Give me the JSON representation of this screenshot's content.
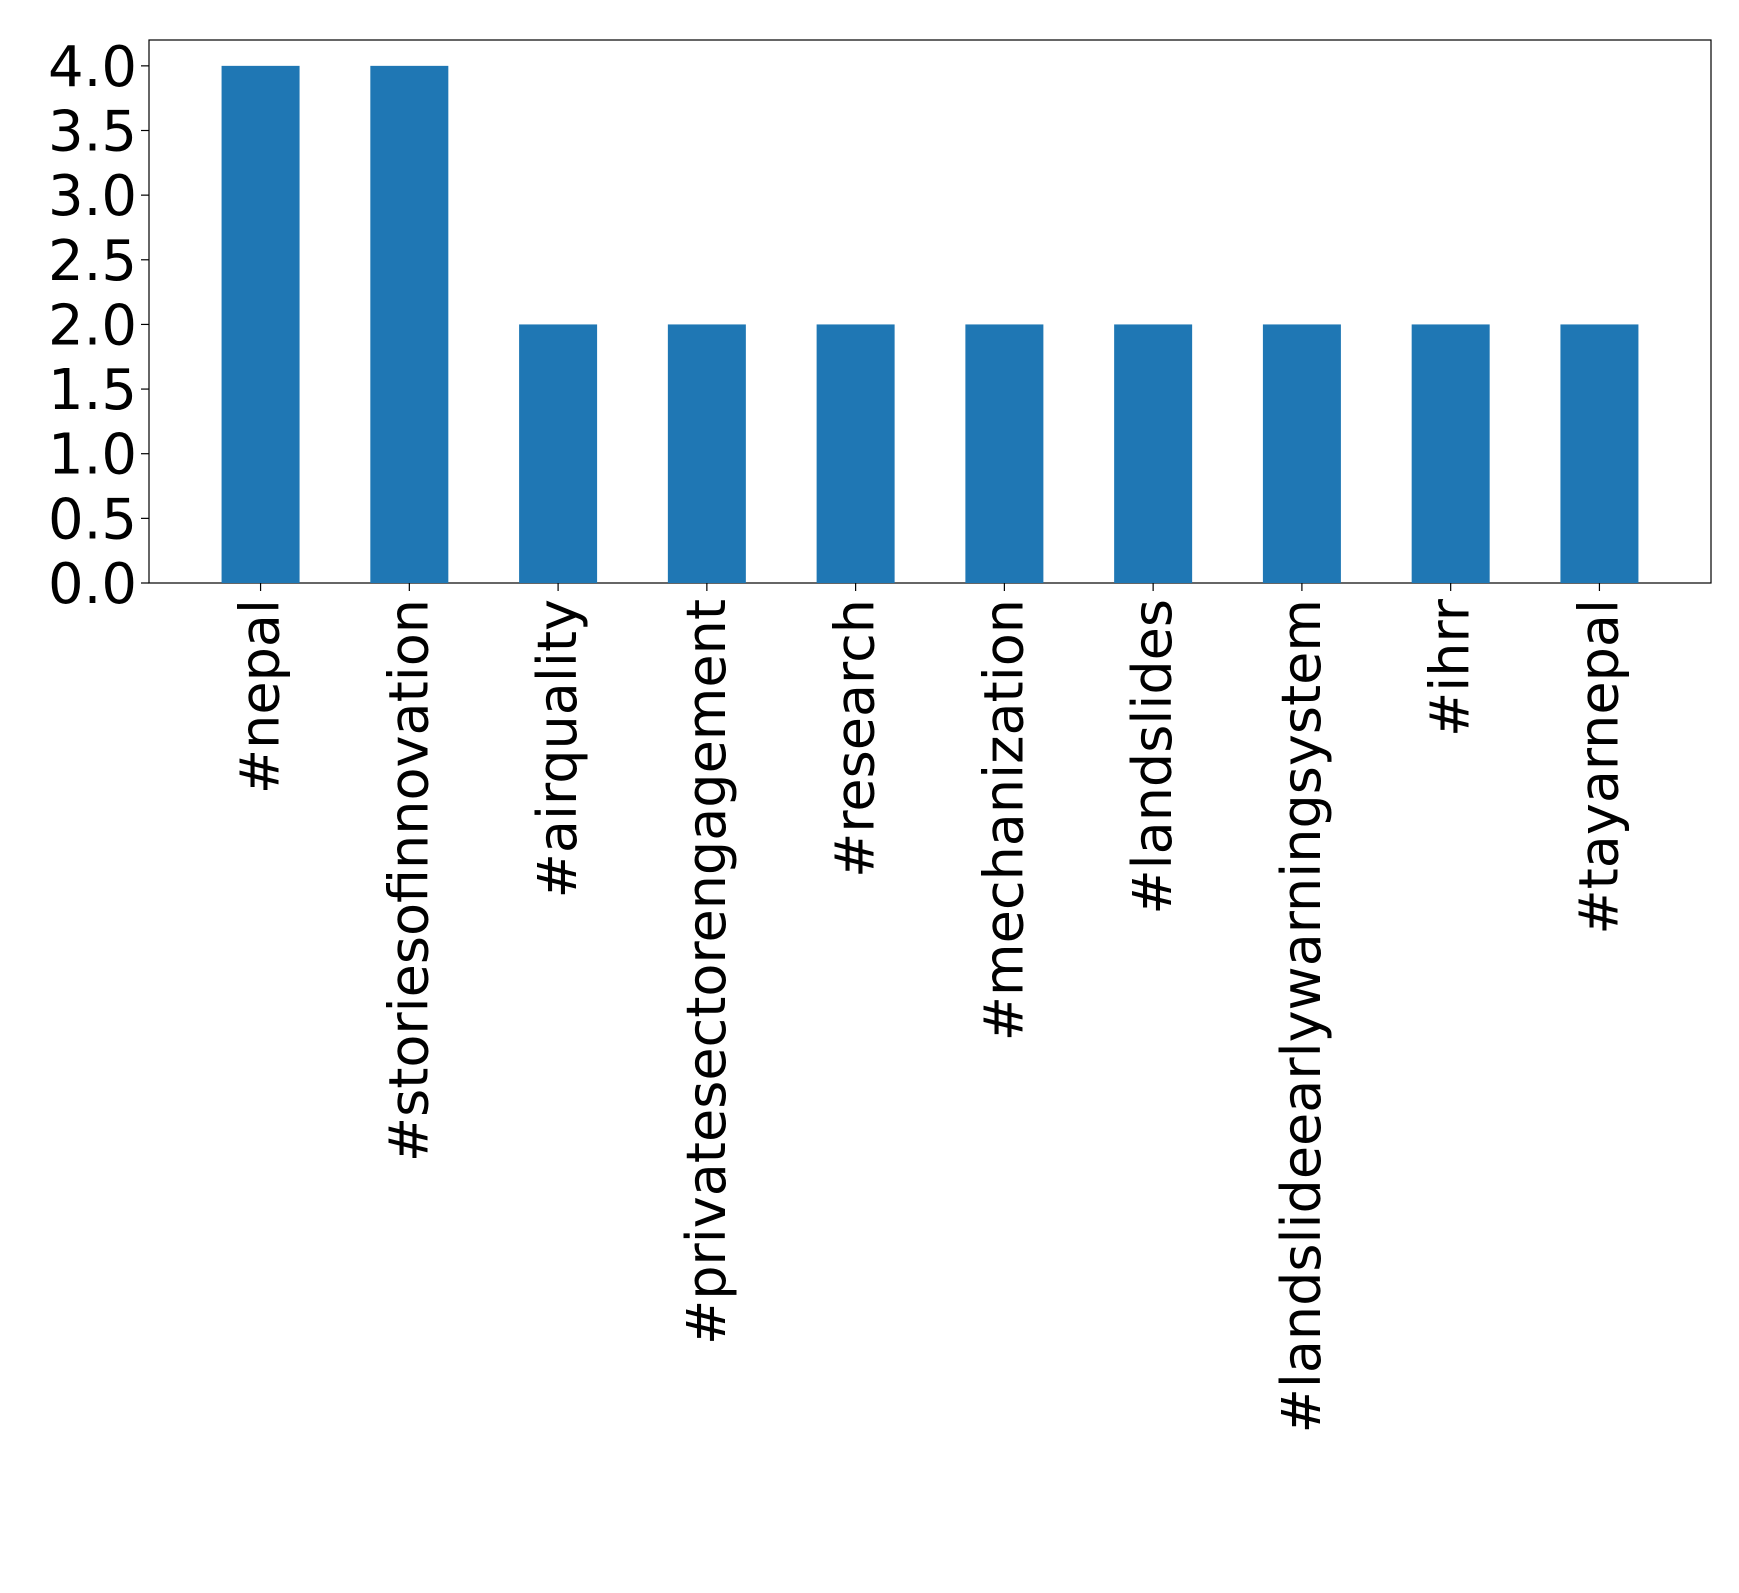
{
  "chart_data": {
    "type": "bar",
    "title": "",
    "xlabel": "",
    "ylabel": "",
    "categories": [
      "#nepal",
      "#storiesofinnovation",
      "#airquality",
      "#privatesectorengagement",
      "#research",
      "#mechanization",
      "#landslides",
      "#landslideearlywarningsystem",
      "#ihrr",
      "#tayarnepal"
    ],
    "values": [
      4,
      4,
      2,
      2,
      2,
      2,
      2,
      2,
      2,
      2
    ],
    "ylim": [
      0,
      4.2
    ],
    "yticks": [
      "0.0",
      "0.5",
      "1.0",
      "1.5",
      "2.0",
      "2.5",
      "3.0",
      "3.5",
      "4.0"
    ],
    "bar_color": "#1f77b4",
    "grid": false,
    "legend": "none"
  }
}
